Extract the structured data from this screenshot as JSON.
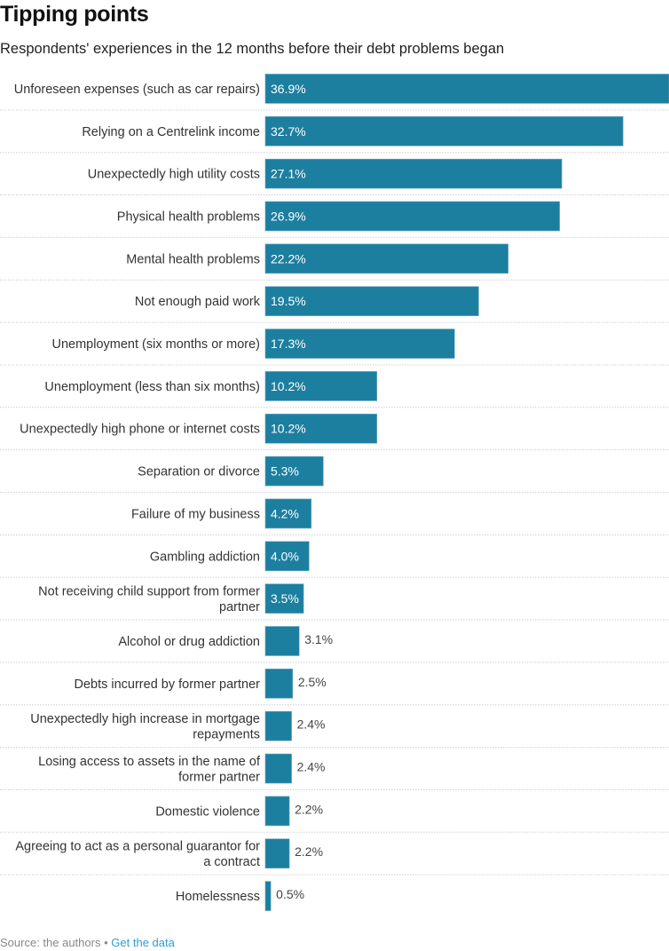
{
  "header": {
    "title": "Tipping points",
    "subtitle": "Respondents' experiences in the 12 months before their debt problems began"
  },
  "footer": {
    "source": "Source: the authors",
    "separator": "•",
    "link_label": "Get the data"
  },
  "chart_data": {
    "type": "bar",
    "orientation": "horizontal",
    "title": "Tipping points",
    "subtitle": "Respondents' experiences in the 12 months before their debt problems began",
    "xlabel": "",
    "ylabel": "",
    "unit": "%",
    "xlim": [
      0,
      36.9
    ],
    "grid": false,
    "bar_color": "#1d7fa0",
    "categories": [
      [
        "Unforeseen expenses (such as car repairs)"
      ],
      [
        "Relying on a Centrelink income"
      ],
      [
        "Unexpectedly high utility costs"
      ],
      [
        "Physical health problems"
      ],
      [
        "Mental health problems"
      ],
      [
        "Not enough paid work"
      ],
      [
        "Unemployment (six months or more)"
      ],
      [
        "Unemployment (less than six months)"
      ],
      [
        "Unexpectedly high phone or internet costs"
      ],
      [
        "Separation or divorce"
      ],
      [
        "Failure of my business"
      ],
      [
        "Gambling addiction"
      ],
      [
        "Not receiving child support from former",
        "partner"
      ],
      [
        "Alcohol or drug addiction"
      ],
      [
        "Debts incurred by former partner"
      ],
      [
        "Unexpectedly high increase in mortgage",
        "repayments"
      ],
      [
        "Losing access to assets in the name of",
        "former partner"
      ],
      [
        "Domestic violence"
      ],
      [
        "Agreeing to act as a personal guarantor for",
        "a contract"
      ],
      [
        "Homelessness"
      ]
    ],
    "values": [
      36.9,
      32.7,
      27.1,
      26.9,
      22.2,
      19.5,
      17.3,
      10.2,
      10.2,
      5.3,
      4.2,
      4.0,
      3.5,
      3.1,
      2.5,
      2.4,
      2.4,
      2.2,
      2.2,
      0.5
    ],
    "labels": [
      "36.9%",
      "32.7%",
      "27.1%",
      "26.9%",
      "22.2%",
      "19.5%",
      "17.3%",
      "10.2%",
      "10.2%",
      "5.3%",
      "4.2%",
      "4.0%",
      "3.5%",
      "3.1%",
      "2.5%",
      "2.4%",
      "2.4%",
      "2.2%",
      "2.2%",
      "0.5%"
    ]
  }
}
